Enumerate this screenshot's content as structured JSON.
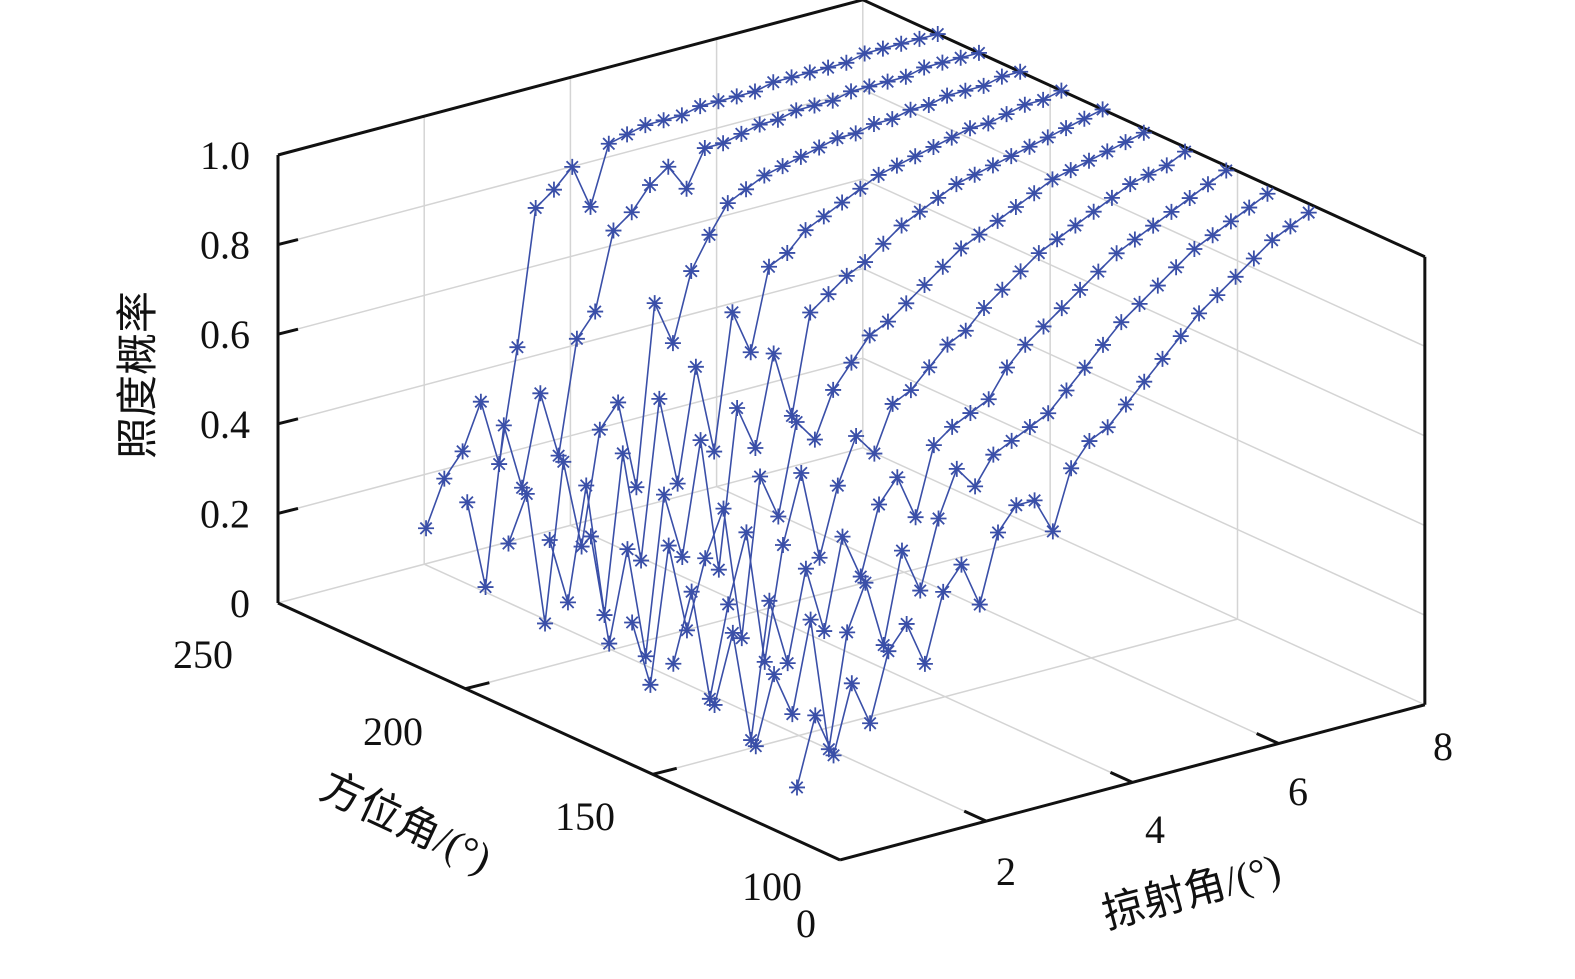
{
  "chart_data": {
    "type": "line3d",
    "zlabel": "照度概率",
    "xlabel": "方位角/(°)",
    "ylabel": "掠射角/(°)",
    "azimuth_ticks": [
      "250",
      "200",
      "150",
      "100"
    ],
    "grazing_ticks": [
      "0",
      "2",
      "4",
      "6",
      "8"
    ],
    "z_ticks": [
      "0",
      "0.2",
      "0.4",
      "0.6",
      "0.8",
      "1.0"
    ],
    "azimuth_range": [
      100,
      250
    ],
    "grazing_range": [
      0,
      8
    ],
    "z_range": [
      0,
      1
    ],
    "grid": true,
    "color": "#3a4fa8",
    "marker": "asterisk",
    "grazing": [
      1,
      1.25,
      1.5,
      1.75,
      2,
      2.25,
      2.5,
      2.75,
      3,
      3.25,
      3.5,
      3.75,
      4,
      4.25,
      4.5,
      4.75,
      5,
      5.25,
      5.5,
      5.75,
      6,
      6.25,
      6.5,
      6.75,
      7,
      7.25,
      7.5,
      7.75,
      8
    ],
    "series": [
      {
        "azimuth": 230,
        "values": [
          0.2,
          0.3,
          0.35,
          0.45,
          0.3,
          0.55,
          0.85,
          0.88,
          0.92,
          0.82,
          0.95,
          0.96,
          0.97,
          0.97,
          0.97,
          0.98,
          0.98,
          0.98,
          0.98,
          0.99,
          0.99,
          0.99,
          0.99,
          0.99,
          1,
          1,
          1,
          1,
          1
        ]
      },
      {
        "azimuth": 219,
        "values": [
          0.3,
          0.1,
          0.45,
          0.3,
          0.5,
          0.35,
          0.6,
          0.65,
          0.82,
          0.85,
          0.9,
          0.93,
          0.87,
          0.95,
          0.95,
          0.96,
          0.97,
          0.97,
          0.98,
          0.98,
          0.98,
          0.99,
          0.99,
          0.99,
          0.99,
          1,
          1,
          1,
          1
        ]
      },
      {
        "azimuth": 208,
        "values": [
          0.25,
          0.35,
          0.05,
          0.4,
          0.2,
          0.45,
          0.5,
          0.3,
          0.7,
          0.6,
          0.75,
          0.82,
          0.88,
          0.9,
          0.92,
          0.93,
          0.94,
          0.95,
          0.96,
          0.96,
          0.97,
          0.97,
          0.98,
          0.98,
          0.99,
          0.99,
          0.99,
          1,
          1
        ]
      },
      {
        "azimuth": 197,
        "values": [
          0.3,
          0.15,
          0.4,
          0.1,
          0.45,
          0.2,
          0.55,
          0.35,
          0.6,
          0.4,
          0.7,
          0.6,
          0.78,
          0.8,
          0.84,
          0.86,
          0.88,
          0.9,
          0.92,
          0.93,
          0.94,
          0.95,
          0.96,
          0.97,
          0.97,
          0.98,
          0.99,
          0.99,
          1
        ]
      },
      {
        "azimuth": 186,
        "values": [
          0.35,
          0.1,
          0.3,
          0.05,
          0.4,
          0.25,
          0.5,
          0.2,
          0.55,
          0.45,
          0.65,
          0.5,
          0.72,
          0.75,
          0.78,
          0.8,
          0.83,
          0.86,
          0.88,
          0.9,
          0.92,
          0.93,
          0.94,
          0.95,
          0.96,
          0.97,
          0.98,
          0.99,
          1
        ]
      },
      {
        "azimuth": 175,
        "values": [
          0.2,
          0.05,
          0.35,
          0.15,
          0.3,
          0.4,
          0.1,
          0.45,
          0.35,
          0.55,
          0.5,
          0.6,
          0.65,
          0.7,
          0.72,
          0.75,
          0.78,
          0.81,
          0.84,
          0.86,
          0.88,
          0.9,
          0.92,
          0.94,
          0.95,
          0.96,
          0.97,
          0.98,
          0.99
        ]
      },
      {
        "azimuth": 164,
        "values": [
          0.15,
          0.3,
          0.05,
          0.25,
          0.4,
          0.1,
          0.35,
          0.5,
          0.3,
          0.45,
          0.55,
          0.5,
          0.6,
          0.62,
          0.66,
          0.7,
          0.72,
          0.76,
          0.79,
          0.82,
          0.85,
          0.87,
          0.89,
          0.91,
          0.93,
          0.95,
          0.96,
          0.97,
          0.99
        ]
      },
      {
        "azimuth": 153,
        "values": [
          0.1,
          0.25,
          0.0,
          0.3,
          0.15,
          0.35,
          0.2,
          0.4,
          0.3,
          0.45,
          0.5,
          0.4,
          0.55,
          0.58,
          0.6,
          0.62,
          0.68,
          0.72,
          0.75,
          0.78,
          0.81,
          0.84,
          0.87,
          0.89,
          0.91,
          0.93,
          0.95,
          0.97,
          0.99
        ]
      },
      {
        "azimuth": 142,
        "values": [
          0.05,
          0.2,
          0.1,
          0.3,
          0.0,
          0.25,
          0.35,
          0.2,
          0.4,
          0.3,
          0.45,
          0.55,
          0.5,
          0.56,
          0.58,
          0.6,
          0.62,
          0.66,
          0.7,
          0.74,
          0.78,
          0.81,
          0.84,
          0.87,
          0.9,
          0.92,
          0.94,
          0.96,
          0.98
        ]
      },
      {
        "azimuth": 131,
        "values": [
          0.0,
          0.15,
          0.05,
          0.2,
          0.1,
          0.25,
          0.3,
          0.2,
          0.35,
          0.4,
          0.3,
          0.45,
          0.5,
          0.5,
          0.42,
          0.55,
          0.6,
          0.62,
          0.66,
          0.7,
          0.74,
          0.78,
          0.82,
          0.85,
          0.88,
          0.91,
          0.94,
          0.96,
          0.98
        ]
      }
    ]
  }
}
